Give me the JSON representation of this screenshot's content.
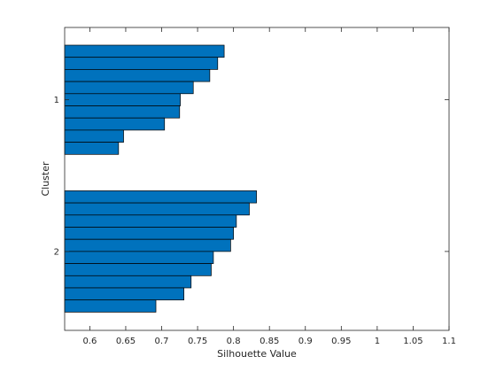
{
  "chart_data": {
    "type": "bar",
    "orientation": "horizontal",
    "xlabel": "Silhouette Value",
    "ylabel": "Cluster",
    "xlim": [
      0.565,
      1.1
    ],
    "x_ticks": [
      0.6,
      0.65,
      0.7,
      0.75,
      0.8,
      0.85,
      0.9,
      0.95,
      1,
      1.05,
      1.1
    ],
    "x_tick_labels": [
      "0.6",
      "0.65",
      "0.7",
      "0.75",
      "0.8",
      "0.85",
      "0.9",
      "0.95",
      "1",
      "1.05",
      "1.1"
    ],
    "grid": false,
    "bar_color": "#0072BD",
    "edge_color": "#000000",
    "clusters": [
      {
        "label": "1",
        "values": [
          0.787,
          0.778,
          0.767,
          0.744,
          0.726,
          0.725,
          0.704,
          0.647,
          0.64
        ]
      },
      {
        "label": "2",
        "values": [
          0.832,
          0.822,
          0.804,
          0.8,
          0.796,
          0.772,
          0.769,
          0.741,
          0.731,
          0.692
        ]
      }
    ]
  }
}
